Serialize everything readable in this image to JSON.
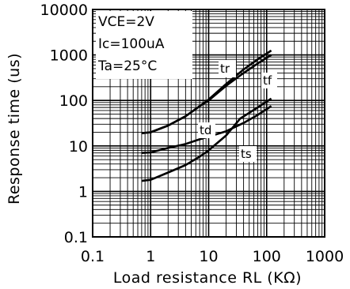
{
  "chart_data": {
    "type": "line",
    "xlabel": "Load resistance  RL  (KΩ)",
    "ylabel": "Response  time  (us)",
    "xscale": "log",
    "yscale": "log",
    "xlim": [
      0.1,
      1000
    ],
    "ylim": [
      0.1,
      10000
    ],
    "grid": true,
    "x_ticks": [
      "0.1",
      "1",
      "10",
      "100",
      "1000"
    ],
    "y_ticks": [
      "0.1",
      "1",
      "10",
      "100",
      "1000",
      "10000"
    ],
    "conditions": [
      "VCE=2V",
      "Ic=100uA",
      "Ta=25°C"
    ],
    "series": [
      {
        "name": "tr",
        "x": [
          0.7,
          1,
          2,
          4,
          7,
          10,
          20,
          40,
          70,
          120
        ],
        "y": [
          19,
          20,
          28,
          45,
          75,
          105,
          230,
          480,
          800,
          1250
        ]
      },
      {
        "name": "tf",
        "x": [
          0.7,
          1,
          2,
          4,
          7,
          10,
          20,
          40,
          70,
          120
        ],
        "y": [
          19,
          20,
          28,
          45,
          75,
          100,
          210,
          400,
          650,
          1000
        ]
      },
      {
        "name": "td",
        "x": [
          0.7,
          1,
          2,
          4,
          7,
          10,
          20,
          40,
          70,
          120
        ],
        "y": [
          7,
          7.2,
          9,
          11,
          14,
          16,
          21,
          32,
          48,
          75
        ]
      },
      {
        "name": "ts",
        "x": [
          0.7,
          1,
          2,
          4,
          7,
          10,
          20,
          35,
          70,
          120
        ],
        "y": [
          1.7,
          1.8,
          2.6,
          3.8,
          5.8,
          8,
          17,
          40,
          70,
          110
        ]
      }
    ]
  }
}
